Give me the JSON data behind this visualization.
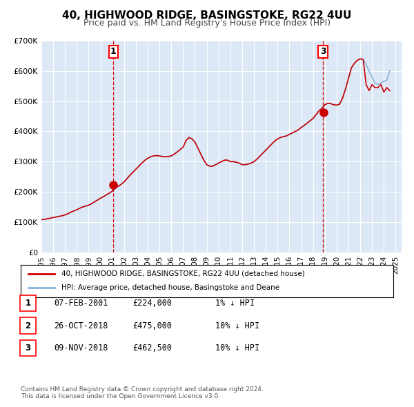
{
  "title": "40, HIGHWOOD RIDGE, BASINGSTOKE, RG22 4UU",
  "subtitle": "Price paid vs. HM Land Registry's House Price Index (HPI)",
  "xlabel": "",
  "ylabel": "",
  "ylim": [
    0,
    700000
  ],
  "xlim_start": 1995.0,
  "xlim_end": 2025.5,
  "yticks": [
    0,
    100000,
    200000,
    300000,
    400000,
    500000,
    600000,
    700000
  ],
  "ytick_labels": [
    "£0",
    "£100K",
    "£200K",
    "£300K",
    "£400K",
    "£500K",
    "£600K",
    "£700K"
  ],
  "xticks": [
    1995,
    1996,
    1997,
    1998,
    1999,
    2000,
    2001,
    2002,
    2003,
    2004,
    2005,
    2006,
    2007,
    2008,
    2009,
    2010,
    2011,
    2012,
    2013,
    2014,
    2015,
    2016,
    2017,
    2018,
    2019,
    2020,
    2021,
    2022,
    2023,
    2024,
    2025
  ],
  "background_color": "#dce8f5",
  "plot_bg_color": "#dce8f5",
  "fig_bg_color": "#ffffff",
  "hpi_line_color": "#89b4d9",
  "price_line_color": "#cc0000",
  "sale_marker_color": "#cc0000",
  "vline_color": "#cc0000",
  "legend_label_price": "40, HIGHWOOD RIDGE, BASINGSTOKE, RG22 4UU (detached house)",
  "legend_label_hpi": "HPI: Average price, detached house, Basingstoke and Deane",
  "sale1_x": 2001.1,
  "sale1_y": 224000,
  "sale1_label": "1",
  "sale2_x": 2018.82,
  "sale2_y": 475000,
  "sale2_label": "2",
  "sale3_x": 2018.87,
  "sale3_y": 462500,
  "sale3_label": "3",
  "vline1_x": 2001.1,
  "vline3_x": 2018.85,
  "table_rows": [
    {
      "num": "1",
      "date": "07-FEB-2001",
      "price": "£224,000",
      "hpi": "1% ↓ HPI"
    },
    {
      "num": "2",
      "date": "26-OCT-2018",
      "price": "£475,000",
      "hpi": "10% ↓ HPI"
    },
    {
      "num": "3",
      "date": "09-NOV-2018",
      "price": "£462,500",
      "hpi": "10% ↓ HPI"
    }
  ],
  "footer_text": "Contains HM Land Registry data © Crown copyright and database right 2024.\nThis data is licensed under the Open Government Licence v3.0.",
  "hpi_data_x": [
    1995.0,
    1995.25,
    1995.5,
    1995.75,
    1996.0,
    1996.25,
    1996.5,
    1996.75,
    1997.0,
    1997.25,
    1997.5,
    1997.75,
    1998.0,
    1998.25,
    1998.5,
    1998.75,
    1999.0,
    1999.25,
    1999.5,
    1999.75,
    2000.0,
    2000.25,
    2000.5,
    2000.75,
    2001.0,
    2001.25,
    2001.5,
    2001.75,
    2002.0,
    2002.25,
    2002.5,
    2002.75,
    2003.0,
    2003.25,
    2003.5,
    2003.75,
    2004.0,
    2004.25,
    2004.5,
    2004.75,
    2005.0,
    2005.25,
    2005.5,
    2005.75,
    2006.0,
    2006.25,
    2006.5,
    2006.75,
    2007.0,
    2007.25,
    2007.5,
    2007.75,
    2008.0,
    2008.25,
    2008.5,
    2008.75,
    2009.0,
    2009.25,
    2009.5,
    2009.75,
    2010.0,
    2010.25,
    2010.5,
    2010.75,
    2011.0,
    2011.25,
    2011.5,
    2011.75,
    2012.0,
    2012.25,
    2012.5,
    2012.75,
    2013.0,
    2013.25,
    2013.5,
    2013.75,
    2014.0,
    2014.25,
    2014.5,
    2014.75,
    2015.0,
    2015.25,
    2015.5,
    2015.75,
    2016.0,
    2016.25,
    2016.5,
    2016.75,
    2017.0,
    2017.25,
    2017.5,
    2017.75,
    2018.0,
    2018.25,
    2018.5,
    2018.75,
    2019.0,
    2019.25,
    2019.5,
    2019.75,
    2020.0,
    2020.25,
    2020.5,
    2020.75,
    2021.0,
    2021.25,
    2021.5,
    2021.75,
    2022.0,
    2022.25,
    2022.5,
    2022.75,
    2023.0,
    2023.25,
    2023.5,
    2023.75,
    2024.0,
    2024.25,
    2024.5
  ],
  "hpi_data_y": [
    108000,
    109000,
    111000,
    113000,
    115000,
    117000,
    119000,
    121000,
    124000,
    128000,
    133000,
    137000,
    141000,
    146000,
    150000,
    153000,
    156000,
    161000,
    167000,
    173000,
    179000,
    184000,
    190000,
    196000,
    202000,
    210000,
    218000,
    225000,
    233000,
    244000,
    255000,
    265000,
    275000,
    285000,
    295000,
    304000,
    311000,
    316000,
    319000,
    320000,
    319000,
    317000,
    316000,
    317000,
    319000,
    325000,
    332000,
    340000,
    348000,
    370000,
    380000,
    375000,
    365000,
    345000,
    325000,
    305000,
    290000,
    285000,
    285000,
    290000,
    295000,
    300000,
    305000,
    305000,
    300000,
    300000,
    298000,
    295000,
    290000,
    290000,
    292000,
    295000,
    300000,
    308000,
    318000,
    328000,
    338000,
    348000,
    358000,
    368000,
    375000,
    380000,
    383000,
    385000,
    390000,
    395000,
    400000,
    405000,
    413000,
    420000,
    427000,
    435000,
    443000,
    455000,
    468000,
    478000,
    488000,
    493000,
    492000,
    488000,
    487000,
    490000,
    510000,
    540000,
    575000,
    610000,
    625000,
    635000,
    640000,
    638000,
    620000,
    600000,
    580000,
    560000,
    555000,
    560000,
    565000,
    570000,
    600000
  ],
  "price_data_x": [
    1995.0,
    1995.25,
    1995.5,
    1995.75,
    1996.0,
    1996.25,
    1996.5,
    1996.75,
    1997.0,
    1997.25,
    1997.5,
    1997.75,
    1998.0,
    1998.25,
    1998.5,
    1998.75,
    1999.0,
    1999.25,
    1999.5,
    1999.75,
    2000.0,
    2000.25,
    2000.5,
    2000.75,
    2001.0,
    2001.25,
    2001.5,
    2001.75,
    2002.0,
    2002.25,
    2002.5,
    2002.75,
    2003.0,
    2003.25,
    2003.5,
    2003.75,
    2004.0,
    2004.25,
    2004.5,
    2004.75,
    2005.0,
    2005.25,
    2005.5,
    2005.75,
    2006.0,
    2006.25,
    2006.5,
    2006.75,
    2007.0,
    2007.25,
    2007.5,
    2007.75,
    2008.0,
    2008.25,
    2008.5,
    2008.75,
    2009.0,
    2009.25,
    2009.5,
    2009.75,
    2010.0,
    2010.25,
    2010.5,
    2010.75,
    2011.0,
    2011.25,
    2011.5,
    2011.75,
    2012.0,
    2012.25,
    2012.5,
    2012.75,
    2013.0,
    2013.25,
    2013.5,
    2013.75,
    2014.0,
    2014.25,
    2014.5,
    2014.75,
    2015.0,
    2015.25,
    2015.5,
    2015.75,
    2016.0,
    2016.25,
    2016.5,
    2016.75,
    2017.0,
    2017.25,
    2017.5,
    2017.75,
    2018.0,
    2018.25,
    2018.5,
    2018.75,
    2019.0,
    2019.25,
    2019.5,
    2019.75,
    2020.0,
    2020.25,
    2020.5,
    2020.75,
    2021.0,
    2021.25,
    2021.5,
    2021.75,
    2022.0,
    2022.25,
    2022.5,
    2022.75,
    2023.0,
    2023.25,
    2023.5,
    2023.75,
    2024.0,
    2024.25,
    2024.5
  ],
  "price_data_y": [
    108000,
    109000,
    111000,
    113000,
    115000,
    117000,
    119000,
    121000,
    124000,
    128000,
    133000,
    137000,
    141000,
    146000,
    150000,
    153000,
    156000,
    161000,
    167000,
    173000,
    179000,
    184000,
    190000,
    196000,
    202000,
    224000,
    218000,
    225000,
    233000,
    244000,
    255000,
    265000,
    275000,
    285000,
    295000,
    304000,
    311000,
    316000,
    319000,
    320000,
    319000,
    317000,
    316000,
    317000,
    319000,
    325000,
    332000,
    340000,
    348000,
    370000,
    380000,
    375000,
    365000,
    345000,
    325000,
    305000,
    290000,
    285000,
    285000,
    290000,
    295000,
    300000,
    305000,
    305000,
    300000,
    300000,
    298000,
    295000,
    290000,
    290000,
    292000,
    295000,
    300000,
    308000,
    318000,
    328000,
    338000,
    348000,
    358000,
    368000,
    375000,
    380000,
    383000,
    385000,
    390000,
    395000,
    400000,
    405000,
    413000,
    420000,
    427000,
    435000,
    443000,
    455000,
    468000,
    475000,
    488000,
    493000,
    492000,
    488000,
    487000,
    490000,
    510000,
    540000,
    575000,
    610000,
    625000,
    635000,
    640000,
    638000,
    555000,
    535000,
    555000,
    545000,
    545000,
    555000,
    530000,
    545000,
    535000
  ]
}
